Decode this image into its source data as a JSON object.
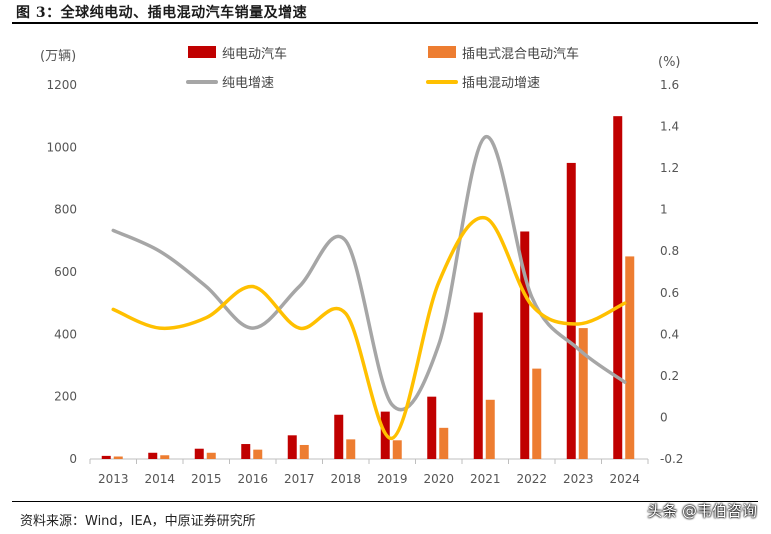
{
  "header": {
    "title": "图 3：全球纯电动、插电混动汽车销量及增速"
  },
  "footer": {
    "source": "资料来源：Wind，IEA，中原证券研究所",
    "watermark": "头条 @韦伯咨询"
  },
  "chart_data": {
    "type": "bar",
    "categories": [
      "2013",
      "2014",
      "2015",
      "2016",
      "2017",
      "2018",
      "2019",
      "2020",
      "2021",
      "2022",
      "2023",
      "2024"
    ],
    "series": [
      {
        "name": "纯电动汽车",
        "type": "bar",
        "axis": "left",
        "color": "#C00000",
        "values": [
          10,
          20,
          33,
          48,
          76,
          142,
          152,
          200,
          470,
          730,
          950,
          1100
        ]
      },
      {
        "name": "插电式混合电动汽车",
        "type": "bar",
        "axis": "left",
        "color": "#ED7D31",
        "values": [
          8,
          12,
          20,
          30,
          45,
          63,
          60,
          100,
          190,
          290,
          420,
          650
        ]
      },
      {
        "name": "纯电增速",
        "type": "line",
        "axis": "right",
        "color": "#A6A6A6",
        "values": [
          0.9,
          0.8,
          0.63,
          0.43,
          0.63,
          0.85,
          0.06,
          0.35,
          1.35,
          0.58,
          0.33,
          0.17
        ]
      },
      {
        "name": "插电混动增速",
        "type": "line",
        "axis": "right",
        "color": "#FFC000",
        "values": [
          0.52,
          0.43,
          0.48,
          0.63,
          0.43,
          0.5,
          -0.1,
          0.65,
          0.96,
          0.54,
          0.45,
          0.55
        ]
      }
    ],
    "y_left": {
      "unit": "(万辆)",
      "ticks": [
        "0",
        "200",
        "400",
        "600",
        "800",
        "1000",
        "1200"
      ],
      "range": [
        0,
        1200
      ]
    },
    "y_right": {
      "unit": "(%)",
      "ticks": [
        "-0.2",
        "0",
        "0.2",
        "0.4",
        "0.6",
        "0.8",
        "1",
        "1.2",
        "1.4",
        "1.6"
      ],
      "range": [
        -0.2,
        1.6
      ]
    },
    "legend_position": "top",
    "grid": false
  }
}
